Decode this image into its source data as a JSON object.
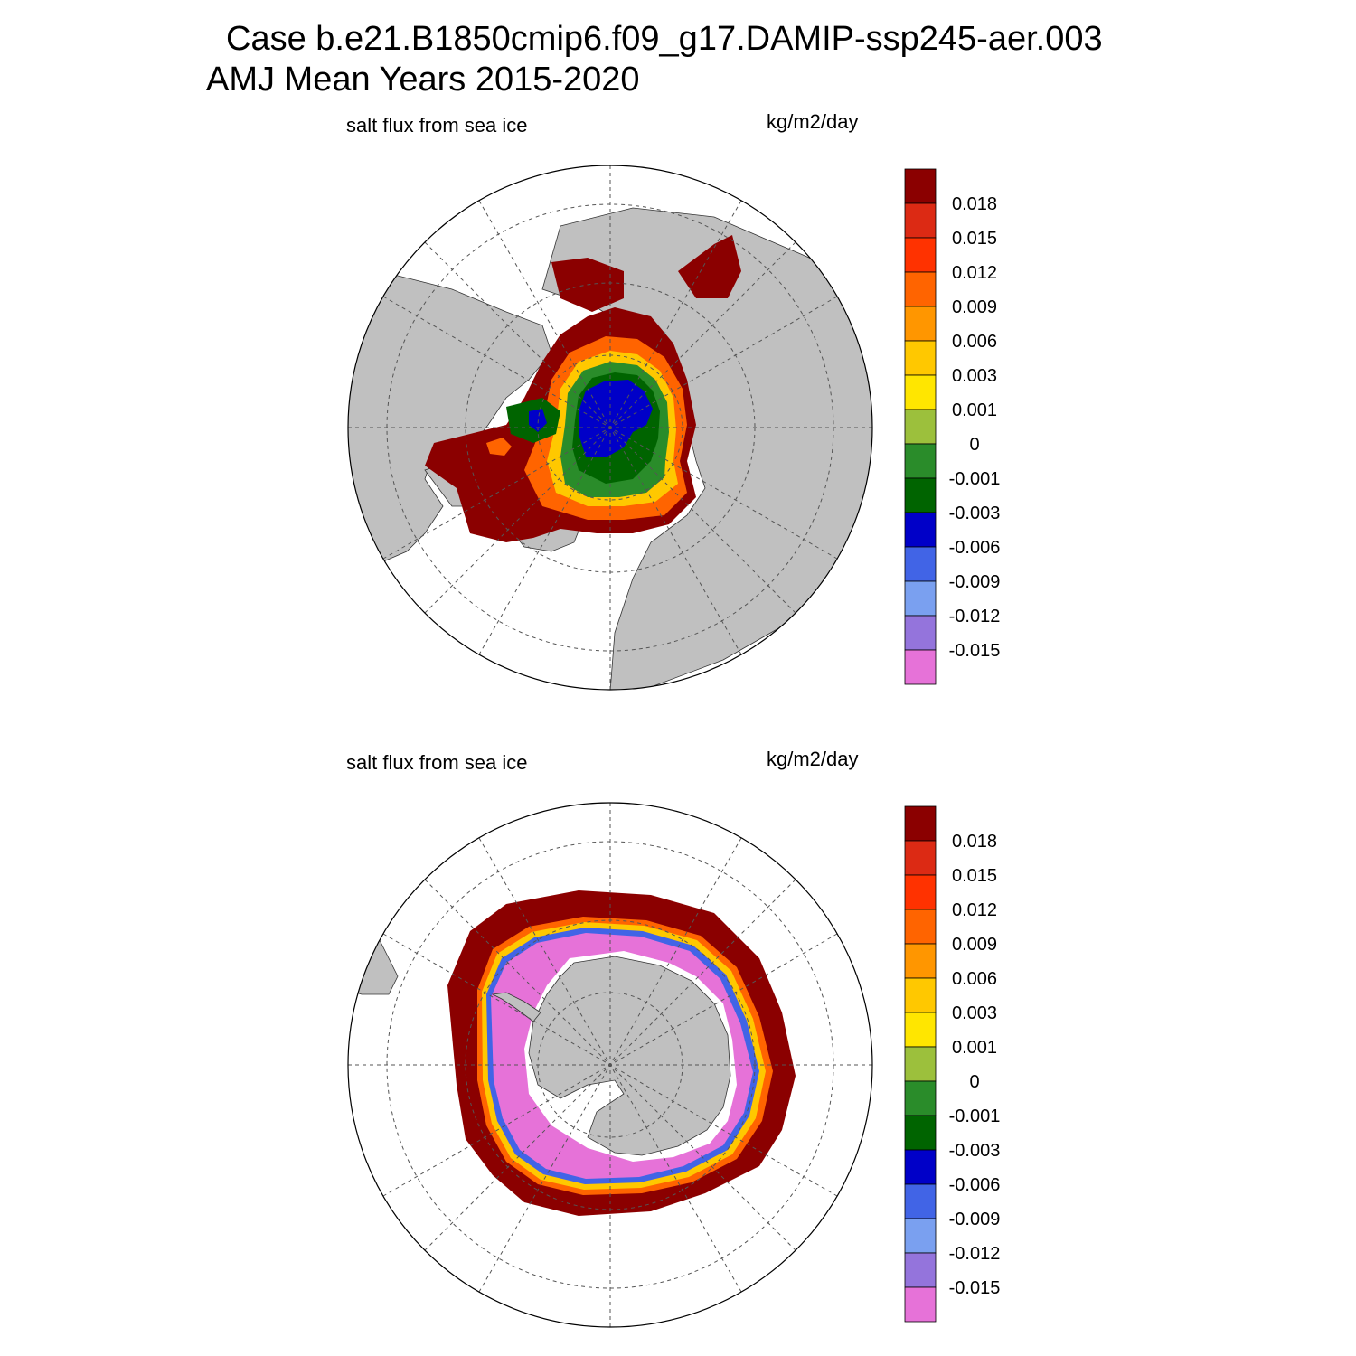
{
  "title": {
    "line1": "Case b.e21.B1850cmip6.f09_g17.DAMIP-ssp245-aer.003",
    "line2": "AMJ Mean   Years 2015-2020"
  },
  "panels": [
    {
      "name": "north",
      "hemisphere": "Northern",
      "variable_label": "salt flux from sea ice",
      "units_label": "kg/m2/day"
    },
    {
      "name": "south",
      "hemisphere": "Southern",
      "variable_label": "salt flux from sea ice",
      "units_label": "kg/m2/day"
    }
  ],
  "colorbar": {
    "colors": [
      "#8b0000",
      "#dc2a14",
      "#ff3200",
      "#ff6400",
      "#ff9600",
      "#ffc800",
      "#ffe600",
      "#9cc03c",
      "#2a8c2a",
      "#006400",
      "#0000c8",
      "#4164e6",
      "#7aa0f0",
      "#9474dc",
      "#e672d8"
    ],
    "labels": [
      "0.018",
      "0.015",
      "0.012",
      "0.009",
      "0.006",
      "0.003",
      "0.001",
      "0",
      "-0.001",
      "-0.003",
      "-0.006",
      "-0.009",
      "-0.012",
      "-0.015"
    ]
  },
  "map_colors": {
    "land": "#c0c0c0",
    "ocean": "#ffffff",
    "frame": "#000000",
    "grid": "#555555"
  }
}
